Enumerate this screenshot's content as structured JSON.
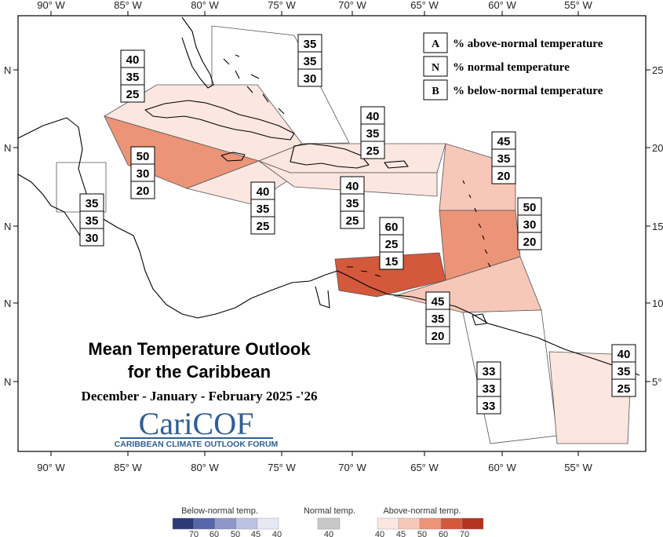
{
  "map": {
    "title_line1": "Mean Temperature Outlook",
    "title_line2": "for the Caribbean",
    "period": "December - January - February 2025 -'26",
    "brand": "CariCOF",
    "brand_subtitle": "CARIBBEAN CLIMATE OUTLOOK FORUM",
    "longitude_ticks": [
      "90° W",
      "85° W",
      "80° W",
      "75° W",
      "70° W",
      "65° W",
      "60° W",
      "55° W"
    ],
    "latitude_ticks_left": [
      "N",
      "N",
      "N",
      "N",
      "N"
    ],
    "latitude_ticks_right": [
      "25",
      "20",
      "15",
      "10",
      "5°"
    ],
    "legend": [
      {
        "key": "A",
        "desc": "% above-normal temperature"
      },
      {
        "key": "N",
        "desc": "% normal temperature"
      },
      {
        "key": "B",
        "desc": "% below-normal temperature"
      }
    ],
    "regions": [
      {
        "name": "bahamas",
        "above": "35",
        "normal": "35",
        "below": "30"
      },
      {
        "name": "cuba",
        "above": "40",
        "normal": "35",
        "below": "25"
      },
      {
        "name": "jamaica-cayman",
        "above": "50",
        "normal": "30",
        "below": "20"
      },
      {
        "name": "belize",
        "above": "35",
        "normal": "35",
        "below": "30"
      },
      {
        "name": "haiti-south",
        "above": "40",
        "normal": "35",
        "below": "25"
      },
      {
        "name": "hispaniola-pr",
        "above": "40",
        "normal": "35",
        "below": "25"
      },
      {
        "name": "north-hispaniola",
        "above": "40",
        "normal": "35",
        "below": "25"
      },
      {
        "name": "leeward-islands",
        "above": "45",
        "normal": "35",
        "below": "20"
      },
      {
        "name": "windward-islands",
        "above": "50",
        "normal": "30",
        "below": "20"
      },
      {
        "name": "abc-islands",
        "above": "60",
        "normal": "25",
        "below": "15"
      },
      {
        "name": "trinidad",
        "above": "45",
        "normal": "35",
        "below": "20"
      },
      {
        "name": "guyana",
        "above": "33",
        "normal": "33",
        "below": "33"
      },
      {
        "name": "suriname-guiana",
        "above": "40",
        "normal": "35",
        "below": "25"
      }
    ],
    "colorbar": {
      "below_label": "Below-normal temp.",
      "normal_label": "Normal temp.",
      "above_label": "Above-normal temp.",
      "below_ticks": [
        "70",
        "60",
        "50",
        "45",
        "40"
      ],
      "normal_ticks": [
        "40"
      ],
      "above_ticks": [
        "40",
        "45",
        "50",
        "60",
        "70"
      ],
      "below_colors": [
        "#2c3a78",
        "#5566aa",
        "#8f97c9",
        "#bcc2e2",
        "#e6e8f4"
      ],
      "normal_color": "#c8c8c8",
      "above_colors": [
        "#fbe6e0",
        "#f7c7b8",
        "#ec9477",
        "#d4583b",
        "#b23320"
      ]
    }
  }
}
